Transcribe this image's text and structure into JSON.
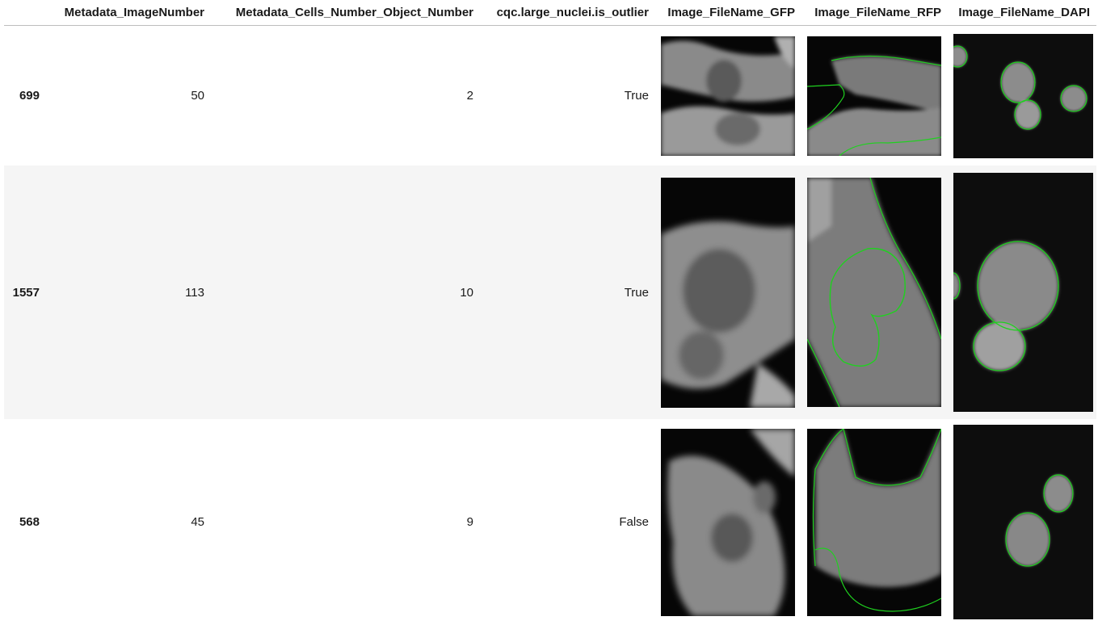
{
  "columns": [
    "",
    "Metadata_ImageNumber",
    "Metadata_Cells_Number_Object_Number",
    "cqc.large_nuclei.is_outlier",
    "Image_FileName_GFP",
    "Image_FileName_RFP",
    "Image_FileName_DAPI"
  ],
  "rows": [
    {
      "index": "699",
      "image_number": "50",
      "object_number": "2",
      "is_outlier": "True"
    },
    {
      "index": "1557",
      "image_number": "113",
      "object_number": "10",
      "is_outlier": "True"
    },
    {
      "index": "568",
      "image_number": "45",
      "object_number": "9",
      "is_outlier": "False"
    }
  ],
  "colors": {
    "outline": "#1fd11f",
    "stripe": "#f5f5f5",
    "header_rule": "#bdbdbd"
  }
}
